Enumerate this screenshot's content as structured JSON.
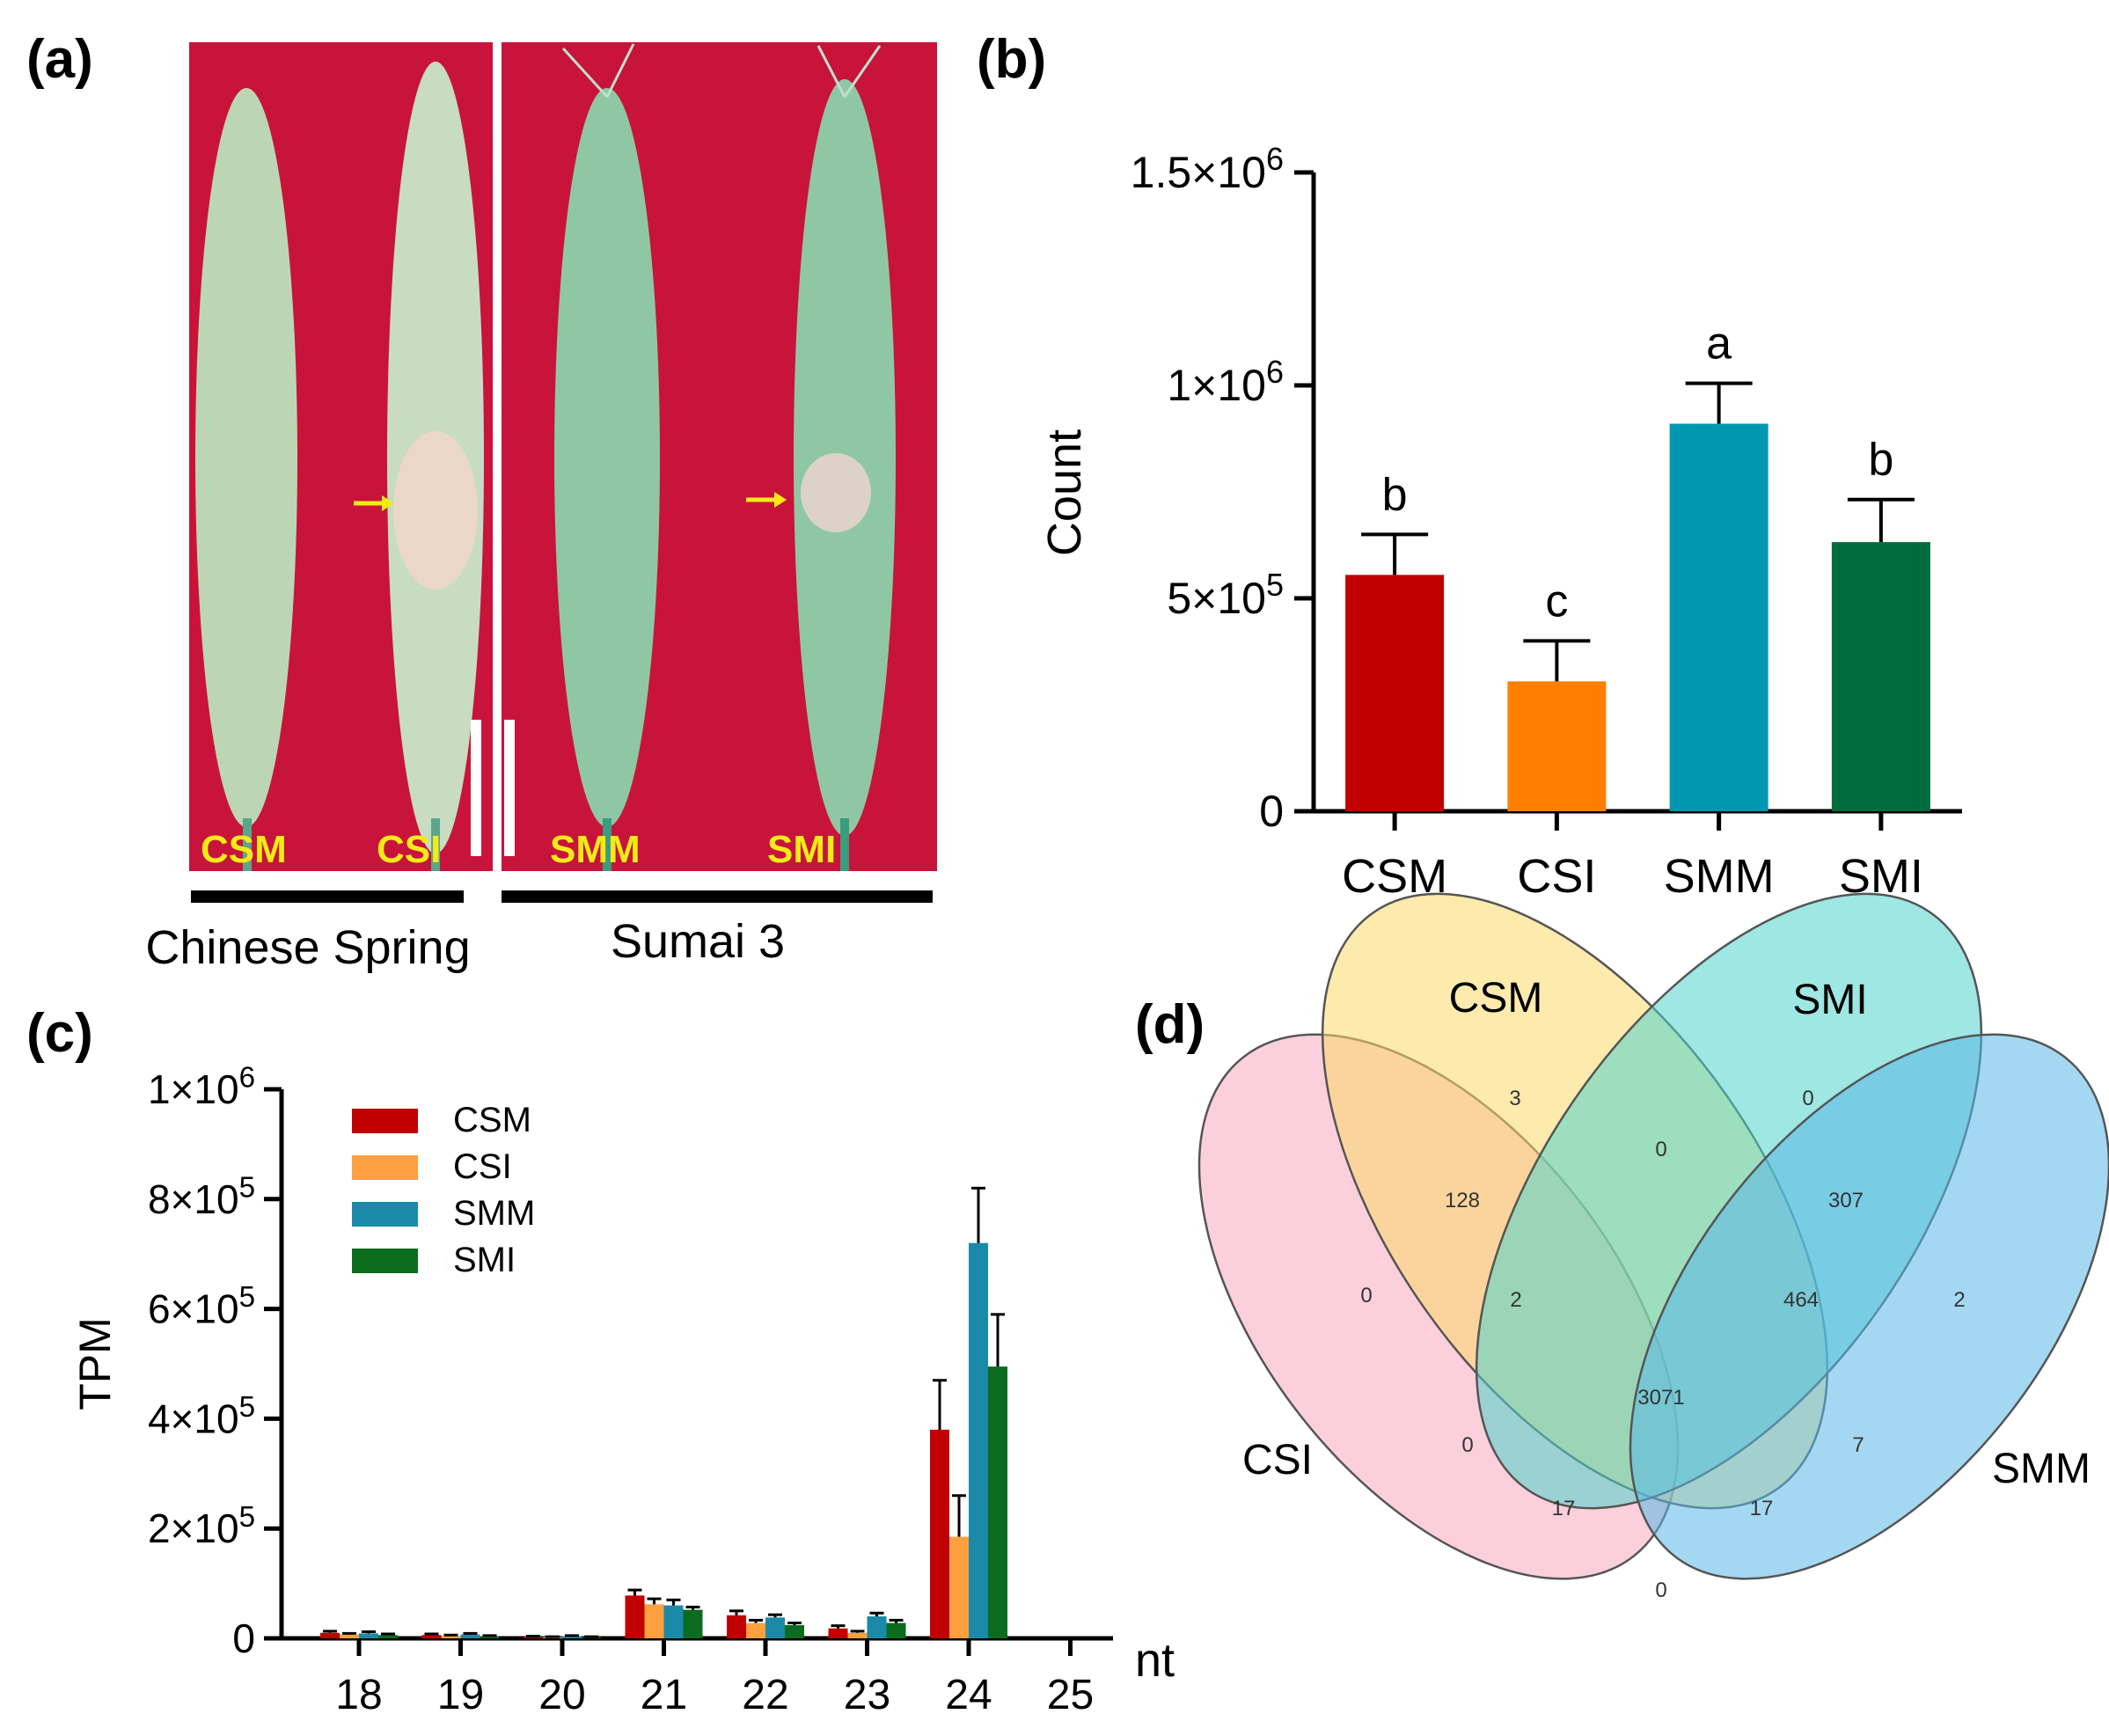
{
  "panel_labels": {
    "a": "(a)",
    "b": "(b)",
    "c": "(c)",
    "d": "(d)"
  },
  "photo": {
    "spike_labels": [
      "CSM",
      "CSI",
      "SMM",
      "SMI"
    ],
    "group_labels": [
      "Chinese Spring",
      "Sumai 3"
    ],
    "colors": {
      "background": "#c8143a",
      "spike": "#bcd6b4",
      "label": "#f2ea1a",
      "arrow": "#f2ea1a"
    }
  },
  "chart_data": [
    {
      "type": "bar",
      "panel": "(b)",
      "categories": [
        "CSM",
        "CSI",
        "SMM",
        "SMI"
      ],
      "values": [
        555000,
        305000,
        910000,
        632000
      ],
      "errors": [
        95000,
        95000,
        95000,
        100000
      ],
      "significance": [
        "b",
        "c",
        "a",
        "b"
      ],
      "colors": [
        "#c00000",
        "#ff8000",
        "#0098b0",
        "#006b3c"
      ],
      "ylabel": "Count",
      "xlabel": "",
      "ylim": [
        0,
        1500000
      ],
      "yticks": [
        0,
        500000,
        1000000,
        1500000
      ],
      "ytick_labels": [
        {
          "base": "0",
          "exp": ""
        },
        {
          "base": "5×10",
          "exp": "5"
        },
        {
          "base": "1×10",
          "exp": "6"
        },
        {
          "base": "1.5×10",
          "exp": "6"
        }
      ]
    },
    {
      "type": "bar",
      "panel": "(c)",
      "categories": [
        "18",
        "19",
        "20",
        "21",
        "22",
        "23",
        "24",
        "25"
      ],
      "series": [
        {
          "name": "CSM",
          "color": "#c00000",
          "values": [
            10000,
            6000,
            3000,
            78000,
            42000,
            18000,
            380000,
            0
          ],
          "errors": [
            3000,
            2000,
            1000,
            10000,
            8000,
            5000,
            90000,
            0
          ]
        },
        {
          "name": "CSI",
          "color": "#ffa040",
          "values": [
            7000,
            4000,
            2000,
            62000,
            28000,
            10000,
            185000,
            0
          ],
          "errors": [
            2000,
            2000,
            1000,
            10000,
            5000,
            3000,
            75000,
            0
          ]
        },
        {
          "name": "SMM",
          "color": "#1a8aa8",
          "values": [
            9000,
            7000,
            4000,
            60000,
            38000,
            40000,
            720000,
            0
          ],
          "errors": [
            3000,
            2000,
            1000,
            10000,
            5000,
            6000,
            100000,
            0
          ]
        },
        {
          "name": "SMI",
          "color": "#0b6b1e",
          "values": [
            6000,
            4000,
            2000,
            52000,
            24000,
            28000,
            495000,
            0
          ],
          "errors": [
            2000,
            1000,
            1000,
            5000,
            4000,
            5000,
            95000,
            0
          ]
        }
      ],
      "ylabel": "TPM",
      "xlabel": "nt",
      "ylim": [
        0,
        1000000
      ],
      "yticks": [
        0,
        200000,
        400000,
        600000,
        800000,
        1000000
      ],
      "ytick_labels": [
        {
          "base": "0",
          "exp": ""
        },
        {
          "base": "2×10",
          "exp": "5"
        },
        {
          "base": "4×10",
          "exp": "5"
        },
        {
          "base": "6×10",
          "exp": "5"
        },
        {
          "base": "8×10",
          "exp": "5"
        },
        {
          "base": "1×10",
          "exp": "6"
        }
      ],
      "legend": "top-left"
    },
    {
      "type": "venn",
      "panel": "(d)",
      "sets": [
        {
          "name": "CSI",
          "color": "#f7a8c0"
        },
        {
          "name": "CSM",
          "color": "#fbd96a"
        },
        {
          "name": "SMI",
          "color": "#4fd4cc"
        },
        {
          "name": "SMM",
          "color": "#5ab8e8"
        }
      ],
      "regions": [
        {
          "sets": [
            "CSM"
          ],
          "value": "3"
        },
        {
          "sets": [
            "SMI"
          ],
          "value": "0"
        },
        {
          "sets": [
            "CSM",
            "SMI"
          ],
          "value": "0"
        },
        {
          "sets": [
            "CSI",
            "CSM"
          ],
          "value": "128"
        },
        {
          "sets": [
            "SMI",
            "SMM"
          ],
          "value": "307"
        },
        {
          "sets": [
            "CSI"
          ],
          "value": "0"
        },
        {
          "sets": [
            "CSI",
            "CSM",
            "SMI"
          ],
          "value": "2"
        },
        {
          "sets": [
            "CSM",
            "SMI",
            "SMM"
          ],
          "value": "464"
        },
        {
          "sets": [
            "SMM"
          ],
          "value": "2"
        },
        {
          "sets": [
            "CSI",
            "CSM",
            "SMI",
            "SMM"
          ],
          "value": "3071"
        },
        {
          "sets": [
            "CSI",
            "SMI"
          ],
          "value": "0"
        },
        {
          "sets": [
            "CSM",
            "SMM"
          ],
          "value": "7"
        },
        {
          "sets": [
            "CSI",
            "SMI",
            "SMM"
          ],
          "value": "17"
        },
        {
          "sets": [
            "CSI",
            "CSM",
            "SMM"
          ],
          "value": "17"
        },
        {
          "sets": [
            "CSI",
            "SMM"
          ],
          "value": "0"
        }
      ]
    }
  ]
}
